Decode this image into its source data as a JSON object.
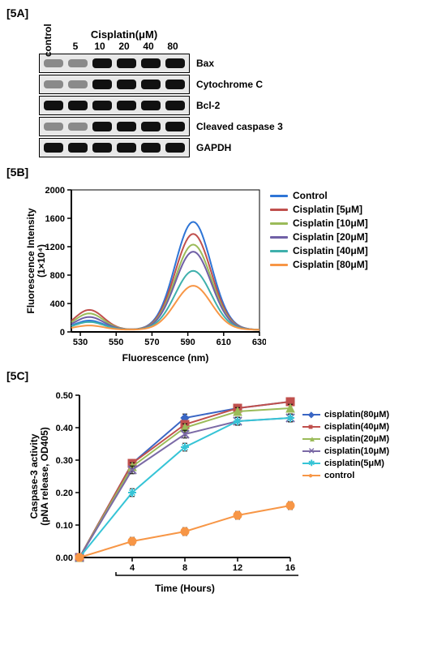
{
  "panelA": {
    "label": "[5A]",
    "control_label": "control",
    "header_title": "Cisplatin(μM)",
    "lane_labels": [
      "5",
      "10",
      "20",
      "40",
      "80"
    ],
    "rows": [
      {
        "label": "Bax",
        "intensities": [
          "faint",
          "faint",
          "strong",
          "strong",
          "strong",
          "strong"
        ]
      },
      {
        "label": "Cytochrome C",
        "intensities": [
          "faint",
          "faint",
          "strong",
          "strong",
          "strong",
          "strong"
        ]
      },
      {
        "label": "Bcl-2",
        "intensities": [
          "strong",
          "strong",
          "strong",
          "strong",
          "strong",
          "strong"
        ]
      },
      {
        "label": "Cleaved caspase 3",
        "intensities": [
          "faint",
          "faint",
          "strong",
          "strong",
          "strong",
          "strong"
        ]
      },
      {
        "label": "GAPDH",
        "intensities": [
          "strong",
          "strong",
          "strong",
          "strong",
          "strong",
          "strong"
        ]
      }
    ]
  },
  "panelB": {
    "label": "[5B]",
    "xlabel": "Fluorescence (nm)",
    "ylabel": "Fluorescence Intensity",
    "ylabel_unit": "(1×10⁴)",
    "xlim": [
      525,
      630
    ],
    "ylim": [
      0,
      2000
    ],
    "xticks": [
      530,
      550,
      570,
      590,
      610,
      630
    ],
    "yticks": [
      0,
      400,
      800,
      1200,
      1600,
      2000
    ],
    "background": "#ffffff",
    "axis_color": "#000000",
    "line_width": 2,
    "series": [
      {
        "name": "Control",
        "color": "#2e75d6",
        "peak": 1520,
        "side": 130
      },
      {
        "name": "Cisplatin [5μM]",
        "color": "#c0504d",
        "peak": 1350,
        "side": 280
      },
      {
        "name": "Cisplatin [10μM]",
        "color": "#9bbb59",
        "peak": 1200,
        "side": 230
      },
      {
        "name": "Cisplatin [20μM]",
        "color": "#7060a6",
        "peak": 1100,
        "side": 180
      },
      {
        "name": "Cisplatin [40μM]",
        "color": "#3fb0ac",
        "peak": 830,
        "side": 110
      },
      {
        "name": "Cisplatin [80μM]",
        "color": "#f79646",
        "peak": 620,
        "side": 60
      }
    ],
    "peak_x": 593,
    "side_x": 535,
    "curve_sigma": 10
  },
  "panelC": {
    "label": "[5C]",
    "xlabel": "Time (Hours)",
    "ylabel_line1": "Caspase-3 activity",
    "ylabel_line2": "(pNA release, OD405)",
    "xlim": [
      0,
      16
    ],
    "ylim": [
      0,
      0.5
    ],
    "xticks": [
      4,
      8,
      12,
      16
    ],
    "yticks": [
      0,
      0.1,
      0.2,
      0.3,
      0.4,
      0.5
    ],
    "axis_color": "#000000",
    "line_width": 2,
    "marker_size": 5,
    "error_bar_half": 0.012,
    "series": [
      {
        "name": "cisplatin(80μM)",
        "color": "#3a66c4",
        "marker": "diamond",
        "y": [
          0,
          0.29,
          0.43,
          0.46,
          0.48
        ]
      },
      {
        "name": "cisplatin(40μM)",
        "color": "#c0504d",
        "marker": "square",
        "y": [
          0,
          0.29,
          0.41,
          0.46,
          0.48
        ]
      },
      {
        "name": "cisplatin(20μM)",
        "color": "#9bbb59",
        "marker": "triangle",
        "y": [
          0,
          0.28,
          0.4,
          0.45,
          0.46
        ]
      },
      {
        "name": "cisplatin(10μM)",
        "color": "#7b6aa6",
        "marker": "x",
        "y": [
          0,
          0.27,
          0.38,
          0.42,
          0.43
        ]
      },
      {
        "name": "cisplatin(5μM)",
        "color": "#36c4d6",
        "marker": "star",
        "y": [
          0,
          0.2,
          0.34,
          0.42,
          0.43
        ]
      },
      {
        "name": "control",
        "color": "#f79646",
        "marker": "circle",
        "y": [
          0,
          0.05,
          0.08,
          0.13,
          0.16
        ]
      }
    ],
    "x_values": [
      0,
      4,
      8,
      12,
      16
    ]
  }
}
